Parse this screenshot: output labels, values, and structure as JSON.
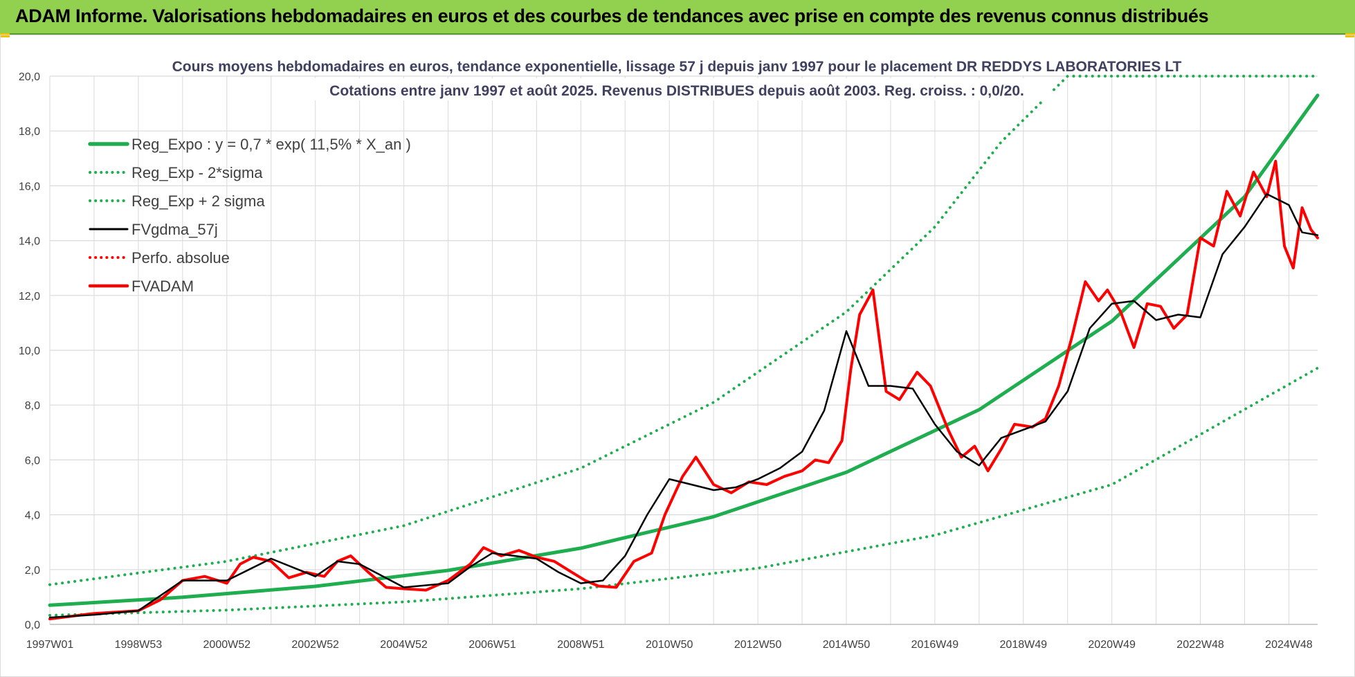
{
  "banner": {
    "title": "ADAM Informe. Valorisations hebdomadaires en euros et des courbes de tendances avec prise en compte des revenus connus distribués"
  },
  "colors": {
    "banner_bg": "#92d050",
    "trend": "#1fae4f",
    "price": "#ff0000",
    "smooth": "#000000",
    "grid": "#d9d9d9"
  },
  "chart_data": {
    "type": "line",
    "title": "Cours moyens hebdomadaires en euros, tendance exponentielle, lissage 57 j depuis janv 1997 pour le placement DR REDDYS LABORATORIES LT",
    "subtitle": "Cotations entre janv 1997 et août 2025. Revenus DISTRIBUES depuis août 2003. Reg. croiss. : 0,0/20.",
    "ylim": [
      0,
      20
    ],
    "xlim": [
      1997.0,
      2025.65
    ],
    "grid": true,
    "legend_position": "top-left",
    "y_ticks": [
      "0,0",
      "2,0",
      "4,0",
      "6,0",
      "8,0",
      "10,0",
      "12,0",
      "14,0",
      "16,0",
      "18,0",
      "20,0"
    ],
    "x_ticks": [
      {
        "label": "1997W01",
        "x": 1997.0
      },
      {
        "label": "1998W53",
        "x": 1999.0
      },
      {
        "label": "2000W52",
        "x": 2001.0
      },
      {
        "label": "2002W52",
        "x": 2003.0
      },
      {
        "label": "2004W52",
        "x": 2005.0
      },
      {
        "label": "2006W51",
        "x": 2007.0
      },
      {
        "label": "2008W51",
        "x": 2009.0
      },
      {
        "label": "2010W50",
        "x": 2011.0
      },
      {
        "label": "2012W50",
        "x": 2013.0
      },
      {
        "label": "2014W50",
        "x": 2015.0
      },
      {
        "label": "2016W49",
        "x": 2017.0
      },
      {
        "label": "2018W49",
        "x": 2019.0
      },
      {
        "label": "2020W49",
        "x": 2021.0
      },
      {
        "label": "2022W48",
        "x": 2023.0
      },
      {
        "label": "2024W48",
        "x": 2025.0
      }
    ],
    "series": [
      {
        "name": "Reg_Expo : y = 0,7 * exp( 11,5% *  X_an )",
        "style": "solid-thick",
        "color": "#1fae4f",
        "x": [
          1997.0,
          2000.0,
          2003.0,
          2006.0,
          2009.0,
          2012.0,
          2015.0,
          2018.0,
          2021.0,
          2024.0,
          2025.65
        ],
        "y": [
          0.7,
          0.99,
          1.39,
          1.97,
          2.78,
          3.93,
          5.55,
          7.83,
          11.06,
          15.6,
          19.3
        ]
      },
      {
        "name": "Reg_Exp - 2*sigma",
        "style": "dotted",
        "color": "#1fae4f",
        "x": [
          1997.0,
          2001.0,
          2005.0,
          2009.0,
          2013.0,
          2017.0,
          2021.0,
          2025.65
        ],
        "y": [
          0.33,
          0.52,
          0.82,
          1.3,
          2.05,
          3.25,
          5.1,
          9.35
        ]
      },
      {
        "name": "Reg_Exp + 2 sigma",
        "style": "dotted",
        "color": "#1fae4f",
        "x": [
          1997.0,
          2001.0,
          2005.0,
          2009.0,
          2012.0,
          2015.0,
          2017.0,
          2018.5,
          2020.0,
          2025.65
        ],
        "y": [
          1.45,
          2.3,
          3.6,
          5.7,
          8.1,
          11.4,
          14.5,
          17.6,
          20.0,
          20.0
        ]
      },
      {
        "name": "FVgdma_57j",
        "style": "solid",
        "color": "#000000",
        "x": [
          1997.0,
          1998.0,
          1999.0,
          2000.0,
          2001.0,
          2002.0,
          2003.0,
          2003.5,
          2004.0,
          2005.0,
          2006.0,
          2006.5,
          2007.0,
          2008.0,
          2008.5,
          2009.0,
          2009.5,
          2010.0,
          2010.5,
          2011.0,
          2011.5,
          2012.0,
          2012.5,
          2013.0,
          2013.5,
          2014.0,
          2014.5,
          2015.0,
          2015.5,
          2016.0,
          2016.5,
          2017.0,
          2017.5,
          2018.0,
          2018.5,
          2019.0,
          2019.5,
          2020.0,
          2020.5,
          2021.0,
          2021.5,
          2022.0,
          2022.5,
          2023.0,
          2023.5,
          2024.0,
          2024.5,
          2025.0,
          2025.3,
          2025.65
        ],
        "y": [
          0.25,
          0.35,
          0.5,
          1.6,
          1.6,
          2.4,
          1.75,
          2.3,
          2.2,
          1.35,
          1.5,
          2.1,
          2.6,
          2.4,
          1.9,
          1.5,
          1.6,
          2.5,
          4.0,
          5.3,
          5.1,
          4.9,
          5.0,
          5.3,
          5.7,
          6.3,
          7.8,
          10.7,
          8.7,
          8.7,
          8.6,
          7.3,
          6.3,
          5.8,
          6.8,
          7.1,
          7.4,
          8.5,
          10.8,
          11.7,
          11.8,
          11.1,
          11.3,
          11.2,
          13.5,
          14.5,
          15.7,
          15.3,
          14.3,
          14.2
        ]
      },
      {
        "name": "Perfo. absolue",
        "style": "dotted",
        "color": "#ff0000",
        "x": [],
        "y": []
      },
      {
        "name": "FVADAM",
        "style": "solid-thick",
        "color": "#ff0000",
        "x": [
          1997.0,
          1997.5,
          1998.0,
          1998.5,
          1999.0,
          1999.5,
          2000.0,
          2000.5,
          2001.0,
          2001.3,
          2001.6,
          2002.0,
          2002.4,
          2002.8,
          2003.2,
          2003.5,
          2003.8,
          2004.2,
          2004.6,
          2005.0,
          2005.5,
          2006.0,
          2006.5,
          2006.8,
          2007.2,
          2007.6,
          2008.0,
          2008.4,
          2008.8,
          2009.1,
          2009.4,
          2009.8,
          2010.2,
          2010.6,
          2010.9,
          2011.3,
          2011.6,
          2012.0,
          2012.4,
          2012.8,
          2013.2,
          2013.6,
          2014.0,
          2014.3,
          2014.6,
          2014.9,
          2015.1,
          2015.3,
          2015.6,
          2015.9,
          2016.2,
          2016.6,
          2016.9,
          2017.3,
          2017.6,
          2017.9,
          2018.2,
          2018.5,
          2018.8,
          2019.2,
          2019.5,
          2019.8,
          2020.1,
          2020.4,
          2020.7,
          2020.9,
          2021.2,
          2021.5,
          2021.8,
          2022.1,
          2022.4,
          2022.7,
          2023.0,
          2023.3,
          2023.6,
          2023.9,
          2024.2,
          2024.5,
          2024.7,
          2024.9,
          2025.1,
          2025.3,
          2025.5,
          2025.65
        ],
        "y": [
          0.2,
          0.3,
          0.4,
          0.45,
          0.5,
          0.9,
          1.6,
          1.75,
          1.5,
          2.2,
          2.45,
          2.3,
          1.7,
          1.9,
          1.75,
          2.3,
          2.5,
          1.9,
          1.35,
          1.3,
          1.25,
          1.6,
          2.2,
          2.8,
          2.5,
          2.7,
          2.45,
          2.3,
          1.9,
          1.6,
          1.4,
          1.35,
          2.3,
          2.6,
          4.0,
          5.4,
          6.1,
          5.1,
          4.8,
          5.2,
          5.1,
          5.4,
          5.6,
          6.0,
          5.9,
          6.7,
          9.3,
          11.3,
          12.2,
          8.5,
          8.2,
          9.2,
          8.7,
          7.1,
          6.1,
          6.5,
          5.6,
          6.4,
          7.3,
          7.2,
          7.5,
          8.7,
          10.5,
          12.5,
          11.8,
          12.2,
          11.4,
          10.1,
          11.7,
          11.6,
          10.8,
          11.3,
          14.1,
          13.8,
          15.8,
          14.9,
          16.5,
          15.6,
          16.9,
          13.8,
          13.0,
          15.2,
          14.4,
          14.1
        ]
      }
    ]
  }
}
